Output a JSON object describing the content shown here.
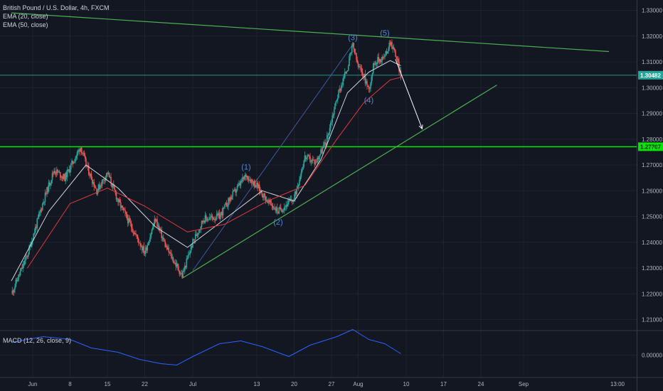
{
  "legend": {
    "symbol": "British Pound / U.S. Dollar, 4h, FXCM",
    "ema20": "EMA (20, close)",
    "ema50": "EMA (50, close)",
    "macd": "MACD (12, 26, close, 9)"
  },
  "colors": {
    "background": "#131722",
    "candle_up": "#26a69a",
    "candle_down": "#ef5350",
    "ema20": "#d1d4dc",
    "ema50": "#e0393e",
    "trendline": "#4caf50",
    "support_line": "#00e600",
    "current_price_line": "#26a69a",
    "wave_label": "#4d86d9",
    "macd_line": "#2962ff",
    "forecast_arrow": "#ffffff"
  },
  "chart_data": [
    {
      "type": "candlestick",
      "title": "British Pound / U.S. Dollar, 4h, FXCM",
      "timeframe": "4h",
      "x_tick_labels": [
        "Jun",
        "8",
        "15",
        "22",
        "Jul",
        "13",
        "20",
        "27",
        "Aug",
        "10",
        "17",
        "24",
        "Sep",
        "13:00"
      ],
      "y_tick_labels": [
        "1.33000",
        "1.32000",
        "1.31000",
        "1.30000",
        "1.29000",
        "1.28000",
        "1.27000",
        "1.26000",
        "1.25000",
        "1.24000",
        "1.23000",
        "1.22000",
        "1.21000"
      ],
      "ylim": [
        1.206,
        1.334
      ],
      "current_price": {
        "label": "1.30482",
        "value": 1.30482
      },
      "support_level": {
        "label": "1.27707",
        "value": 1.27707
      },
      "wave_labels": [
        {
          "text": "(1)",
          "date": "Jul 11",
          "price": 1.2666
        },
        {
          "text": "(2)",
          "date": "Jul 17",
          "price": 1.2513
        },
        {
          "text": "(3)",
          "date": "Jul 31",
          "price": 1.3168
        },
        {
          "text": "(4)",
          "date": "Aug 03",
          "price": 1.2985
        },
        {
          "text": "(5)",
          "date": "Aug 06",
          "price": 1.3185
        }
      ],
      "swing_path": [
        {
          "date": "May 28",
          "price": 1.22
        },
        {
          "date": "May 31",
          "price": 1.235
        },
        {
          "date": "Jun 03",
          "price": 1.256
        },
        {
          "date": "Jun 05",
          "price": 1.268
        },
        {
          "date": "Jun 07",
          "price": 1.265
        },
        {
          "date": "Jun 10",
          "price": 1.277
        },
        {
          "date": "Jun 11",
          "price": 1.27
        },
        {
          "date": "Jun 13",
          "price": 1.26
        },
        {
          "date": "Jun 15",
          "price": 1.267
        },
        {
          "date": "Jun 17",
          "price": 1.256
        },
        {
          "date": "Jun 19",
          "price": 1.248
        },
        {
          "date": "Jun 22",
          "price": 1.236
        },
        {
          "date": "Jun 24",
          "price": 1.249
        },
        {
          "date": "Jun 26",
          "price": 1.238
        },
        {
          "date": "Jun 29",
          "price": 1.227
        },
        {
          "date": "Jul 01",
          "price": 1.24
        },
        {
          "date": "Jul 03",
          "price": 1.249
        },
        {
          "date": "Jul 06",
          "price": 1.25
        },
        {
          "date": "Jul 08",
          "price": 1.257
        },
        {
          "date": "Jul 11",
          "price": 1.266
        },
        {
          "date": "Jul 13",
          "price": 1.262
        },
        {
          "date": "Jul 15",
          "price": 1.256
        },
        {
          "date": "Jul 17",
          "price": 1.252
        },
        {
          "date": "Jul 20",
          "price": 1.257
        },
        {
          "date": "Jul 22",
          "price": 1.273
        },
        {
          "date": "Jul 24",
          "price": 1.271
        },
        {
          "date": "Jul 26",
          "price": 1.279
        },
        {
          "date": "Jul 28",
          "price": 1.296
        },
        {
          "date": "Jul 30",
          "price": 1.308
        },
        {
          "date": "Jul 31",
          "price": 1.3165
        },
        {
          "date": "Aug 01",
          "price": 1.308
        },
        {
          "date": "Aug 02",
          "price": 1.305
        },
        {
          "date": "Aug 03",
          "price": 1.299
        },
        {
          "date": "Aug 04",
          "price": 1.31
        },
        {
          "date": "Aug 06",
          "price": 1.312
        },
        {
          "date": "Aug 07",
          "price": 1.318
        },
        {
          "date": "Aug 08",
          "price": 1.313
        },
        {
          "date": "Aug 09",
          "price": 1.3048
        }
      ],
      "ema20_path": [
        {
          "date": "May 28",
          "price": 1.225
        },
        {
          "date": "Jun 04",
          "price": 1.252
        },
        {
          "date": "Jun 11",
          "price": 1.27
        },
        {
          "date": "Jun 17",
          "price": 1.261
        },
        {
          "date": "Jun 24",
          "price": 1.246
        },
        {
          "date": "Jun 30",
          "price": 1.238
        },
        {
          "date": "Jul 07",
          "price": 1.249
        },
        {
          "date": "Jul 14",
          "price": 1.26
        },
        {
          "date": "Jul 20",
          "price": 1.256
        },
        {
          "date": "Jul 25",
          "price": 1.272
        },
        {
          "date": "Jul 30",
          "price": 1.298
        },
        {
          "date": "Aug 03",
          "price": 1.306
        },
        {
          "date": "Aug 07",
          "price": 1.3105
        },
        {
          "date": "Aug 09",
          "price": 1.3085
        }
      ],
      "ema50_path": [
        {
          "date": "May 31",
          "price": 1.23
        },
        {
          "date": "Jun 08",
          "price": 1.255
        },
        {
          "date": "Jun 15",
          "price": 1.261
        },
        {
          "date": "Jun 22",
          "price": 1.254
        },
        {
          "date": "Jun 30",
          "price": 1.244
        },
        {
          "date": "Jul 07",
          "price": 1.247
        },
        {
          "date": "Jul 15",
          "price": 1.256
        },
        {
          "date": "Jul 22",
          "price": 1.262
        },
        {
          "date": "Jul 28",
          "price": 1.28
        },
        {
          "date": "Aug 02",
          "price": 1.294
        },
        {
          "date": "Aug 07",
          "price": 1.303
        },
        {
          "date": "Aug 09",
          "price": 1.304
        }
      ],
      "upper_trendline": [
        {
          "date": "May 28",
          "price": 1.329
        },
        {
          "date": "Sep 17",
          "price": 1.314
        }
      ],
      "lower_trendline": [
        {
          "date": "Jun 29",
          "price": 1.226
        },
        {
          "date": "Aug 27",
          "price": 1.301
        }
      ],
      "inner_channel": [
        {
          "date": "Jul 01",
          "price": 1.229
        },
        {
          "date": "Jul 31",
          "price": 1.3168
        }
      ],
      "forecast_arrow": [
        {
          "date": "Aug 08",
          "price": 1.311
        },
        {
          "date": "Aug 13",
          "price": 1.284
        }
      ]
    },
    {
      "type": "line",
      "title": "MACD (12, 26, close, 9)",
      "y_tick_labels": [
        "0.00000"
      ],
      "series": [
        {
          "name": "MACD (12, 26, close, 9)",
          "points": [
            {
              "date": "May 28",
              "value": 0.0045
            },
            {
              "date": "Jun 03",
              "value": 0.0065
            },
            {
              "date": "Jun 08",
              "value": 0.0055
            },
            {
              "date": "Jun 12",
              "value": 0.0025
            },
            {
              "date": "Jun 17",
              "value": 0.001
            },
            {
              "date": "Jun 21",
              "value": -0.0015
            },
            {
              "date": "Jun 25",
              "value": -0.003
            },
            {
              "date": "Jun 28",
              "value": -0.0035
            },
            {
              "date": "Jul 01",
              "value": -0.0005
            },
            {
              "date": "Jul 06",
              "value": 0.004
            },
            {
              "date": "Jul 10",
              "value": 0.005
            },
            {
              "date": "Jul 14",
              "value": 0.003
            },
            {
              "date": "Jul 19",
              "value": -0.0005
            },
            {
              "date": "Jul 23",
              "value": 0.0035
            },
            {
              "date": "Jul 28",
              "value": 0.0065
            },
            {
              "date": "Jul 31",
              "value": 0.009
            },
            {
              "date": "Aug 03",
              "value": 0.0055
            },
            {
              "date": "Aug 06",
              "value": 0.004
            },
            {
              "date": "Aug 09",
              "value": 0.0005
            }
          ]
        }
      ]
    }
  ]
}
